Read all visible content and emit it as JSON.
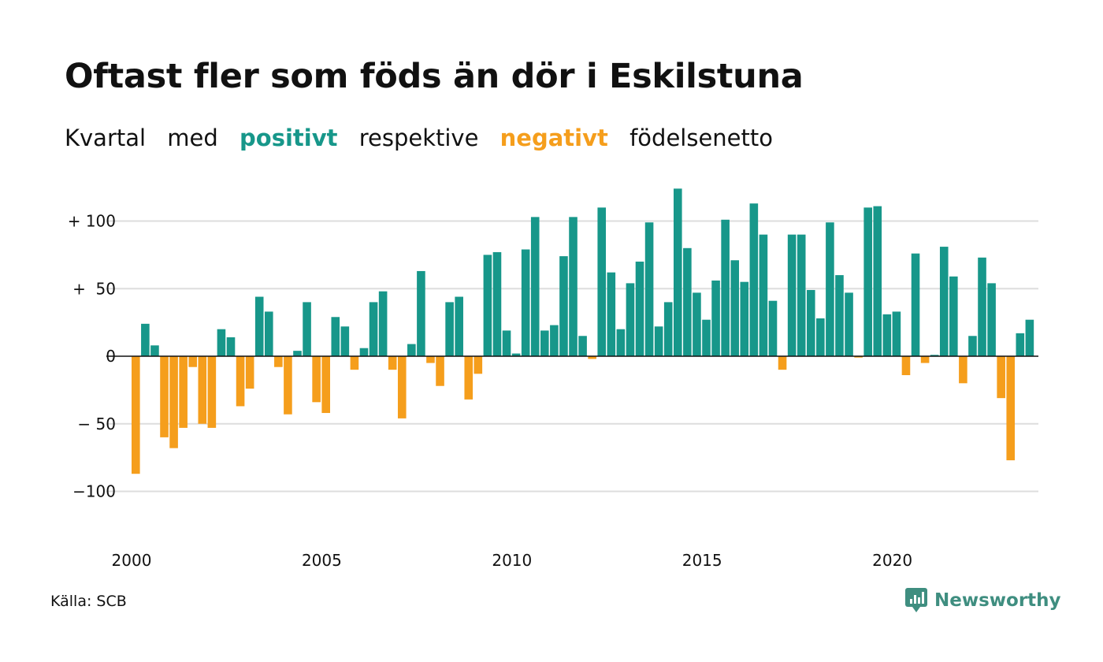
{
  "title": "Oftast fler som föds än dör i Eskilstuna",
  "subtitle": {
    "part1": "Kvartal",
    "part2": "med",
    "positive_word": "positivt",
    "part3": "respektive",
    "negative_word": "negativt",
    "part4": "födelsenetto"
  },
  "source": "Källa: SCB",
  "brand": "Newsworthy",
  "colors": {
    "positive": "#17978a",
    "negative": "#f59e1c",
    "grid": "#dddddd",
    "axis": "#111111",
    "brand": "#3f8e80"
  },
  "chart_data": {
    "type": "bar",
    "x_start": 2000,
    "periods_per_year": 4,
    "x_ticks": [
      2000,
      2005,
      2010,
      2015,
      2020
    ],
    "x_tick_labels": [
      "2000",
      "2005",
      "2010",
      "2015",
      "2020"
    ],
    "y_ticks": [
      100,
      50,
      0,
      -50,
      -100
    ],
    "y_tick_labels": [
      "+ 100",
      "+  50",
      "0",
      "− 50",
      "−100"
    ],
    "ylim": [
      -100,
      125
    ],
    "grid": true,
    "values": [
      -87,
      24,
      8,
      -60,
      -68,
      -53,
      -8,
      -50,
      -53,
      20,
      14,
      -37,
      -24,
      44,
      33,
      -8,
      -43,
      4,
      40,
      -34,
      -42,
      29,
      22,
      -10,
      6,
      40,
      48,
      -10,
      -46,
      9,
      63,
      -5,
      -22,
      40,
      44,
      -32,
      -13,
      75,
      77,
      19,
      2,
      79,
      103,
      19,
      23,
      74,
      103,
      15,
      -2,
      110,
      62,
      20,
      54,
      70,
      99,
      22,
      40,
      124,
      80,
      47,
      27,
      56,
      101,
      71,
      55,
      113,
      90,
      41,
      -10,
      90,
      90,
      49,
      28,
      99,
      60,
      47,
      -1,
      110,
      111,
      31,
      33,
      -14,
      76,
      -5,
      1,
      81,
      59,
      -20,
      15,
      73,
      54,
      -31,
      -77,
      17,
      27
    ]
  }
}
